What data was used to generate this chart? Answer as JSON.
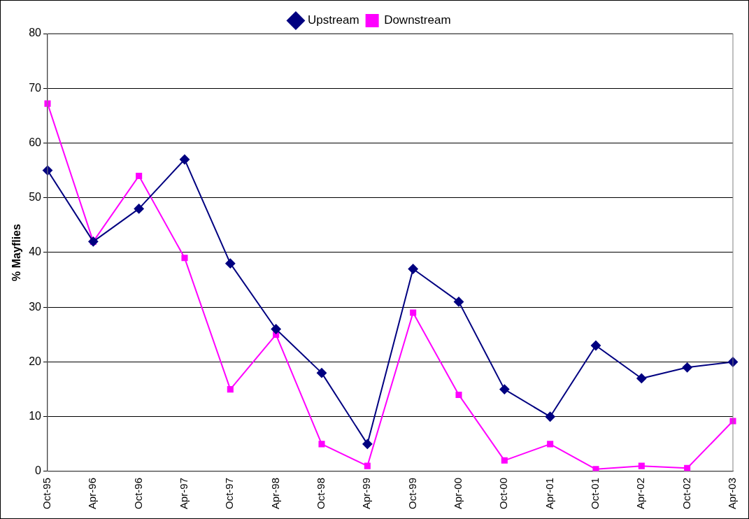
{
  "chart_data": {
    "type": "line",
    "ylabel": "% Mayflies",
    "categories": [
      "Oct-95",
      "Apr-96",
      "Oct-96",
      "Apr-97",
      "Oct-97",
      "Apr-98",
      "Oct-98",
      "Apr-99",
      "Oct-99",
      "Apr-00",
      "Oct-00",
      "Apr-01",
      "Oct-01",
      "Apr-02",
      "Oct-02",
      "Apr-03"
    ],
    "series": [
      {
        "name": "Upstream",
        "color": "#000080",
        "marker": "diamond",
        "values": [
          55,
          42,
          48,
          57,
          38,
          26,
          18,
          5,
          37,
          31,
          15,
          10,
          23,
          17,
          19,
          20
        ]
      },
      {
        "name": "Downstream",
        "color": "#ff00ff",
        "marker": "square",
        "values": [
          67.2,
          42,
          54,
          39,
          15,
          25,
          5,
          1,
          29,
          14,
          2,
          5,
          0.4,
          1,
          0.6,
          9.2
        ]
      }
    ],
    "ylim": [
      0,
      80
    ],
    "yticks": [
      0,
      10,
      20,
      30,
      40,
      50,
      60,
      70,
      80
    ],
    "grid": "y",
    "legend": "top",
    "line_style": "solid"
  }
}
